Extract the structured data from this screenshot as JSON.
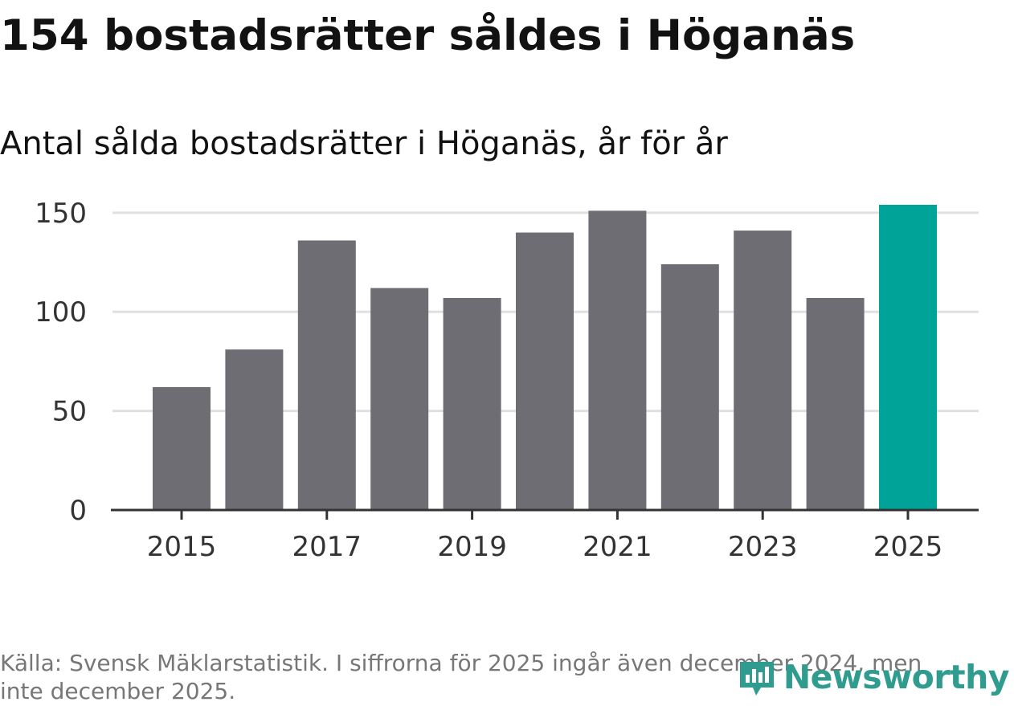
{
  "title": "154 bostadsrätter såldes i Höganäs",
  "subtitle": "Antal sålda bostadsrätter i Höganäs, år för år",
  "source": "Källa: Svensk Mäklarstatistik. I siffrorna för 2025 ingår även december 2024, men inte december 2025.",
  "brand": {
    "name": "Newsworthy",
    "icon": "newsworthy-logo-icon",
    "color": "#2f9c8f"
  },
  "colors": {
    "bar": "#6e6d73",
    "highlight": "#00a398",
    "grid": "#e0e0e0",
    "axis": "#333333"
  },
  "chart_data": {
    "type": "bar",
    "title": "Antal sålda bostadsrätter i Höganäs, år för år",
    "xlabel": "",
    "ylabel": "",
    "categories": [
      "2015",
      "2016",
      "2017",
      "2018",
      "2019",
      "2020",
      "2021",
      "2022",
      "2023",
      "2024",
      "2025"
    ],
    "values": [
      62,
      81,
      136,
      112,
      107,
      140,
      151,
      124,
      141,
      107,
      154
    ],
    "highlight_index": 10,
    "highlight_label": "154",
    "x_tick_labels": [
      "2015",
      "2017",
      "2019",
      "2021",
      "2023",
      "2025"
    ],
    "y_ticks": [
      0,
      50,
      100,
      150
    ],
    "ylim": [
      0,
      154
    ],
    "grid": true
  }
}
